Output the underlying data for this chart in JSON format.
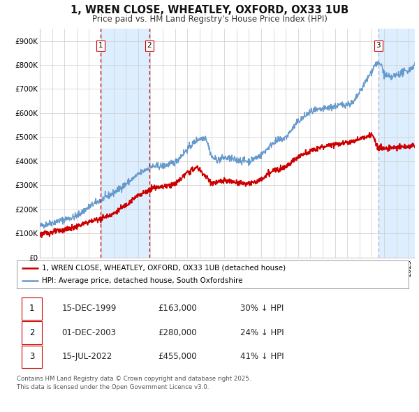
{
  "title": "1, WREN CLOSE, WHEATLEY, OXFORD, OX33 1UB",
  "subtitle": "Price paid vs. HM Land Registry's House Price Index (HPI)",
  "background_color": "#ffffff",
  "plot_bg_color": "#ffffff",
  "grid_color": "#cccccc",
  "legend_entries": [
    "1, WREN CLOSE, WHEATLEY, OXFORD, OX33 1UB (detached house)",
    "HPI: Average price, detached house, South Oxfordshire"
  ],
  "footer_text": "Contains HM Land Registry data © Crown copyright and database right 2025.\nThis data is licensed under the Open Government Licence v3.0.",
  "table_rows": [
    [
      "1",
      "15-DEC-1999",
      "£163,000",
      "30% ↓ HPI"
    ],
    [
      "2",
      "01-DEC-2003",
      "£280,000",
      "24% ↓ HPI"
    ],
    [
      "3",
      "15-JUL-2022",
      "£455,000",
      "41% ↓ HPI"
    ]
  ],
  "xmin": 1995.0,
  "xmax": 2025.5,
  "ymin": 0,
  "ymax": 950000,
  "yticks": [
    0,
    100000,
    200000,
    300000,
    400000,
    500000,
    600000,
    700000,
    800000,
    900000
  ],
  "ytick_labels": [
    "£0",
    "£100K",
    "£200K",
    "£300K",
    "£400K",
    "£500K",
    "£600K",
    "£700K",
    "£800K",
    "£900K"
  ],
  "hpi_color": "#6699cc",
  "price_color": "#cc0000",
  "shaded_color": "#ddeeff",
  "vline_color_solid": "#cc0000",
  "vline_color_dotted": "#aaaacc",
  "sale_dot_color": "#cc0000",
  "sale_date_floats": [
    1999.958,
    2003.917,
    2022.542
  ],
  "sale_prices": [
    163000,
    280000,
    455000
  ],
  "sale_labels": [
    "1",
    "2",
    "3"
  ]
}
